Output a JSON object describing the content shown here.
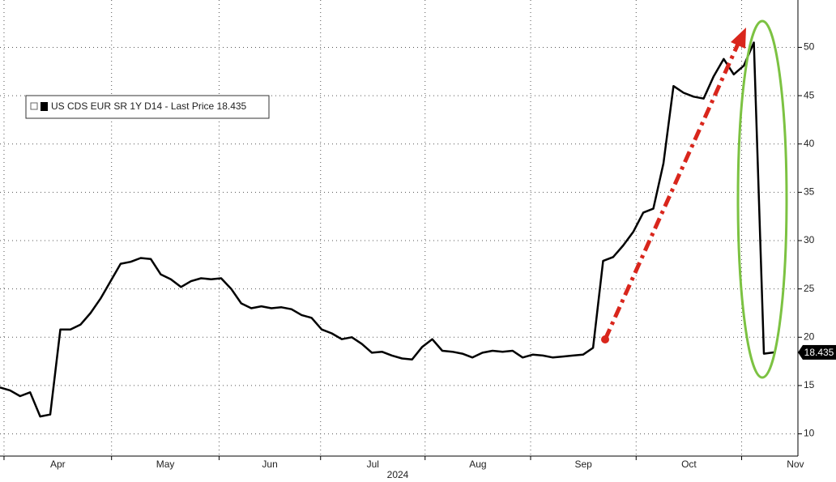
{
  "chart_data": {
    "type": "line",
    "series": [
      {
        "name": "US CDS EUR SR 1Y D14",
        "color": "#000000",
        "values": [
          14.8,
          14.5,
          13.9,
          14.3,
          11.8,
          12.0,
          20.8,
          20.8,
          21.3,
          22.5,
          24.0,
          25.8,
          27.6,
          27.8,
          28.2,
          28.1,
          26.5,
          26.0,
          25.2,
          25.8,
          26.1,
          26.0,
          26.1,
          25.0,
          23.5,
          23.0,
          23.2,
          23.0,
          23.1,
          22.9,
          22.3,
          22.0,
          20.8,
          20.4,
          19.8,
          20.0,
          19.3,
          18.4,
          18.5,
          18.1,
          17.8,
          17.7,
          19.0,
          19.8,
          18.6,
          18.5,
          18.3,
          17.9,
          18.4,
          18.6,
          18.5,
          18.6,
          17.9,
          18.2,
          18.1,
          17.9,
          18.0,
          18.1,
          18.2,
          18.9,
          27.9,
          28.3,
          29.5,
          30.9,
          32.9,
          33.3,
          38.0,
          46.0,
          45.3,
          44.9,
          44.7,
          47.0,
          48.8,
          47.2,
          48.1,
          50.5,
          18.3,
          18.435
        ]
      }
    ],
    "legend_suffix": "- Last Price",
    "xlabel": "2024",
    "xlim": [
      0,
      79.4
    ],
    "xticks": [
      {
        "value": 0.4,
        "label": "Apr"
      },
      {
        "value": 11.1,
        "label": "May"
      },
      {
        "value": 21.8,
        "label": "Jun"
      },
      {
        "value": 31.9,
        "label": "Jul"
      },
      {
        "value": 42.3,
        "label": "Aug"
      },
      {
        "value": 52.8,
        "label": "Sep"
      },
      {
        "value": 63.3,
        "label": "Oct"
      },
      {
        "value": 73.8,
        "label": "Nov"
      }
    ],
    "ylim": [
      7.7,
      54.9
    ],
    "yticks": [
      10,
      15,
      20,
      25,
      30,
      35,
      40,
      45,
      50
    ],
    "grid": true
  }
}
